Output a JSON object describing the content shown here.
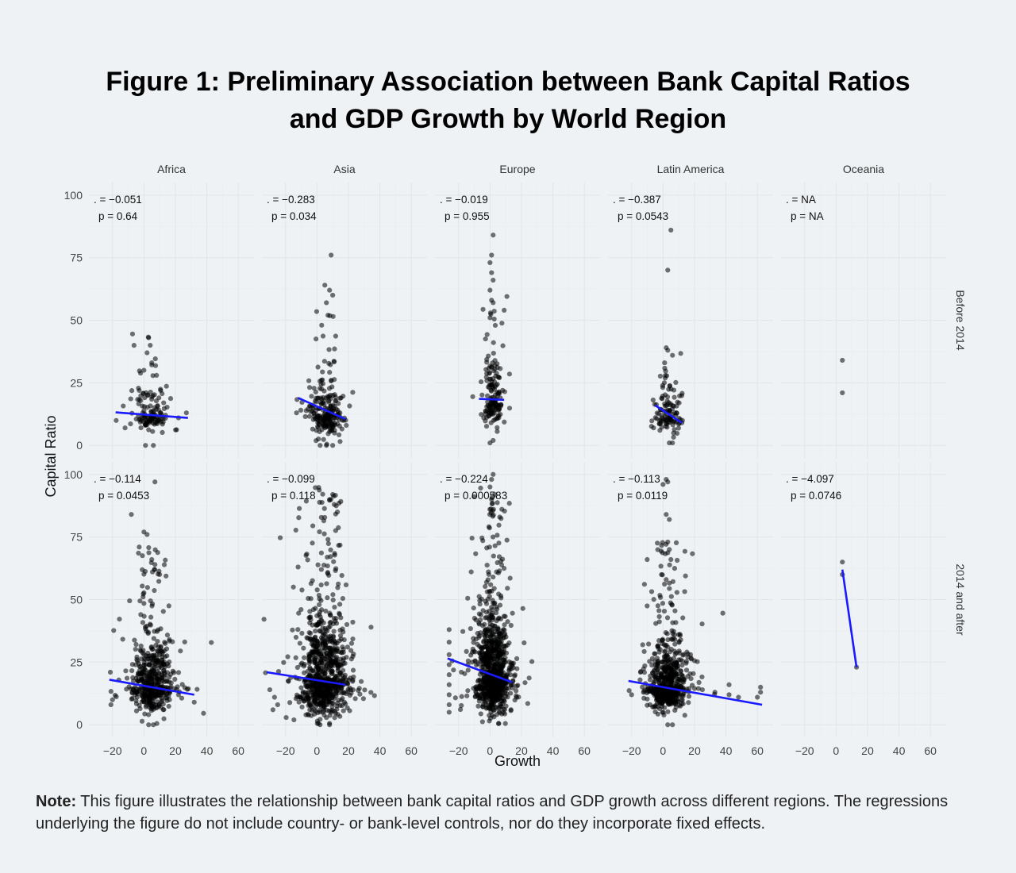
{
  "figure": {
    "title_line1": "Figure 1: Preliminary Association between Bank Capital Ratios",
    "title_line2": "and GDP Growth by World Region",
    "note_label": "Note:",
    "note_text": " This figure illustrates the relationship between bank capital ratios and GDP growth across different regions. The regressions underlying the figure do not include country- or bank-level controls, nor do they incorporate fixed effects."
  },
  "chart_data": {
    "type": "scatter",
    "xlabel": "Growth",
    "ylabel": "Capital Ratio",
    "x_ticks": [
      -20,
      0,
      20,
      40,
      60
    ],
    "y_ticks": [
      0,
      25,
      50,
      75,
      100
    ],
    "xlim": [
      -35,
      70
    ],
    "ylim": [
      -5,
      105
    ],
    "grid": true,
    "columns": [
      "Africa",
      "Asia",
      "Europe",
      "Latin America",
      "Oceania"
    ],
    "rows": [
      "Before 2014",
      "2014 and after"
    ],
    "point_color": "#000000",
    "line_color": "#1a1aff",
    "panels": [
      {
        "row": 0,
        "col": 0,
        "stat_line1": ". = −0.051",
        "stat_line2": "p = 0.64",
        "fit": {
          "x": [
            -18,
            28
          ],
          "y": [
            13.2,
            11
          ]
        },
        "cloud": {
          "n": 130,
          "cx": 4,
          "sx": 5,
          "cy": 12,
          "sy": 6,
          "ymax": 45
        },
        "points": [
          [
            3,
            43
          ],
          [
            4,
            40
          ],
          [
            2,
            37
          ],
          [
            5,
            33
          ],
          [
            0,
            30
          ],
          [
            8,
            28
          ],
          [
            -12,
            7
          ],
          [
            27,
            13
          ],
          [
            22,
            11
          ],
          [
            1,
            0
          ],
          [
            6,
            0
          ]
        ]
      },
      {
        "row": 0,
        "col": 1,
        "stat_line1": ". = −0.283",
        "stat_line2": "p = 0.034",
        "fit": {
          "x": [
            -12,
            18
          ],
          "y": [
            19,
            10.5
          ]
        },
        "cloud": {
          "n": 220,
          "cx": 6,
          "sx": 5,
          "cy": 12,
          "sy": 8,
          "ymax": 60
        },
        "points": [
          [
            9,
            76
          ],
          [
            5,
            64
          ],
          [
            8,
            62
          ],
          [
            10,
            60
          ],
          [
            6,
            57
          ],
          [
            7,
            52
          ],
          [
            3,
            48
          ],
          [
            -13,
            13
          ],
          [
            17,
            10
          ],
          [
            2,
            0
          ],
          [
            6,
            0
          ],
          [
            10,
            0
          ]
        ]
      },
      {
        "row": 0,
        "col": 2,
        "stat_line1": ". = −0.019",
        "stat_line2": "p = 0.955",
        "fit": {
          "x": [
            -7,
            9
          ],
          "y": [
            18.6,
            18.2
          ]
        },
        "cloud": {
          "n": 150,
          "cx": 2,
          "sx": 3,
          "cy": 17,
          "sy": 9,
          "ymax": 60
        },
        "points": [
          [
            2,
            84
          ],
          [
            1,
            76
          ],
          [
            0,
            73
          ],
          [
            1,
            69
          ],
          [
            2,
            66
          ],
          [
            0,
            62
          ],
          [
            1,
            58
          ],
          [
            2,
            57
          ],
          [
            9,
            54
          ],
          [
            0,
            51
          ],
          [
            2,
            2
          ],
          [
            0,
            1
          ],
          [
            -4,
            11
          ],
          [
            8,
            22
          ]
        ]
      },
      {
        "row": 0,
        "col": 3,
        "stat_line1": ". = −0.387",
        "stat_line2": "p = 0.0543",
        "fit": {
          "x": [
            -5,
            12
          ],
          "y": [
            16,
            9
          ]
        },
        "cloud": {
          "n": 110,
          "cx": 4,
          "sx": 4,
          "cy": 12,
          "sy": 7,
          "ymax": 40
        },
        "points": [
          [
            5,
            86
          ],
          [
            3,
            70
          ],
          [
            3,
            38
          ],
          [
            6,
            36
          ],
          [
            1,
            33
          ],
          [
            -6,
            7
          ],
          [
            12,
            9
          ],
          [
            4,
            1
          ],
          [
            6,
            1
          ],
          [
            -2,
            6
          ]
        ]
      },
      {
        "row": 0,
        "col": 4,
        "stat_line1": ". = NA",
        "stat_line2": "p = NA",
        "fit": null,
        "cloud": null,
        "points": [
          [
            4,
            34
          ],
          [
            4,
            21
          ]
        ]
      },
      {
        "row": 1,
        "col": 0,
        "stat_line1": ". = −0.114",
        "stat_line2": "p = 0.0453",
        "fit": {
          "x": [
            -22,
            32
          ],
          "y": [
            18,
            12
          ]
        },
        "cloud": {
          "n": 480,
          "cx": 5,
          "sx": 6,
          "cy": 15,
          "sy": 10,
          "ymax": 72
        },
        "points": [
          [
            7,
            97
          ],
          [
            -8,
            84
          ],
          [
            0,
            77
          ],
          [
            2,
            76
          ],
          [
            -3,
            71
          ],
          [
            5,
            66
          ],
          [
            7,
            64
          ],
          [
            10,
            60
          ],
          [
            32,
            9
          ],
          [
            -21,
            8
          ],
          [
            -20,
            10
          ],
          [
            22,
            12
          ],
          [
            3,
            0
          ],
          [
            6,
            0
          ]
        ]
      },
      {
        "row": 1,
        "col": 1,
        "stat_line1": ". = −0.099",
        "stat_line2": "p = 0.118",
        "fit": {
          "x": [
            -32,
            18
          ],
          "y": [
            21,
            16
          ]
        },
        "cloud": {
          "n": 850,
          "cx": 5,
          "sx": 7,
          "cy": 18,
          "sy": 15,
          "ymax": 95
        },
        "points": [
          [
            10,
            92
          ],
          [
            8,
            90
          ],
          [
            11,
            88
          ],
          [
            13,
            85
          ],
          [
            -12,
            63
          ],
          [
            -15,
            55
          ],
          [
            -30,
            14
          ],
          [
            -27,
            11
          ],
          [
            -25,
            8
          ],
          [
            -28,
            6
          ],
          [
            17,
            16
          ],
          [
            2,
            0
          ],
          [
            8,
            0
          ]
        ]
      },
      {
        "row": 1,
        "col": 2,
        "stat_line1": ". = −0.224",
        "stat_line2": "p = 0.000583",
        "fit": {
          "x": [
            -27,
            14
          ],
          "y": [
            26.5,
            17
          ]
        },
        "cloud": {
          "n": 900,
          "cx": 2,
          "sx": 5,
          "cy": 18,
          "sy": 14,
          "ymax": 95
        },
        "points": [
          [
            2,
            100
          ],
          [
            1,
            98
          ],
          [
            0,
            95
          ],
          [
            3,
            92
          ],
          [
            1,
            90
          ],
          [
            -26,
            38
          ],
          [
            -26,
            33
          ],
          [
            -26,
            28
          ],
          [
            -26,
            24
          ],
          [
            -26,
            20
          ],
          [
            -26,
            16
          ],
          [
            -26,
            12
          ],
          [
            -26,
            8
          ],
          [
            -26,
            5
          ],
          [
            13,
            20
          ],
          [
            -14,
            24
          ]
        ]
      },
      {
        "row": 1,
        "col": 3,
        "stat_line1": ". = −0.113",
        "stat_line2": "p = 0.0119",
        "fit": {
          "x": [
            -22,
            63
          ],
          "y": [
            17.5,
            8
          ]
        },
        "cloud": {
          "n": 620,
          "cx": 3,
          "sx": 6,
          "cy": 15,
          "sy": 9,
          "ymax": 75
        },
        "points": [
          [
            2,
            98
          ],
          [
            3,
            97
          ],
          [
            0,
            96
          ],
          [
            2,
            84
          ],
          [
            4,
            82
          ],
          [
            3,
            73
          ],
          [
            4,
            70
          ],
          [
            5,
            66
          ],
          [
            -1,
            60
          ],
          [
            2,
            58
          ],
          [
            25,
            14
          ],
          [
            33,
            13
          ],
          [
            42,
            16
          ],
          [
            42,
            12
          ],
          [
            48,
            11
          ],
          [
            62,
            15
          ],
          [
            62,
            13
          ],
          [
            60,
            11
          ],
          [
            -20,
            12
          ],
          [
            3,
            0
          ],
          [
            6,
            0
          ]
        ]
      },
      {
        "row": 1,
        "col": 4,
        "stat_line1": ". = −4.097",
        "stat_line2": "p = 0.0746",
        "fit": {
          "x": [
            4,
            13
          ],
          "y": [
            62,
            23
          ]
        },
        "cloud": null,
        "points": [
          [
            4,
            65
          ],
          [
            4,
            60
          ],
          [
            13,
            23
          ]
        ]
      }
    ]
  }
}
